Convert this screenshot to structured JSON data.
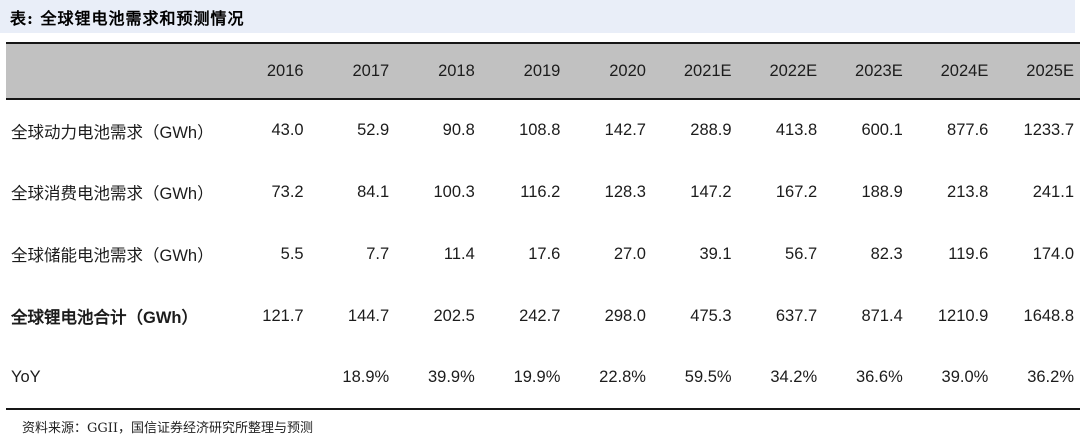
{
  "title": "表: 全球锂电池需求和预测情况",
  "source": "资料来源：GGII，国信证券经济研究所整理与预测",
  "colors": {
    "title_band_bg": "#e9eef8",
    "header_row_bg": "#c1c1c1",
    "rule_line": "#161616",
    "text": "#1c1c1c"
  },
  "table": {
    "corner_label": "",
    "columns": [
      "2016",
      "2017",
      "2018",
      "2019",
      "2020",
      "2021E",
      "2022E",
      "2023E",
      "2024E",
      "2025E"
    ],
    "rows": [
      {
        "label": "全球动力电池需求（GWh）",
        "bold": false,
        "values": [
          "43.0",
          "52.9",
          "90.8",
          "108.8",
          "142.7",
          "288.9",
          "413.8",
          "600.1",
          "877.6",
          "1233.7"
        ]
      },
      {
        "label": "全球消费电池需求（GWh）",
        "bold": false,
        "values": [
          "73.2",
          "84.1",
          "100.3",
          "116.2",
          "128.3",
          "147.2",
          "167.2",
          "188.9",
          "213.8",
          "241.1"
        ]
      },
      {
        "label": "全球储能电池需求（GWh）",
        "bold": false,
        "values": [
          "5.5",
          "7.7",
          "11.4",
          "17.6",
          "27.0",
          "39.1",
          "56.7",
          "82.3",
          "119.6",
          "174.0"
        ]
      },
      {
        "label": "全球锂电池合计（GWh）",
        "bold": true,
        "values": [
          "121.7",
          "144.7",
          "202.5",
          "242.7",
          "298.0",
          "475.3",
          "637.7",
          "871.4",
          "1210.9",
          "1648.8"
        ]
      },
      {
        "label": "YoY",
        "bold": false,
        "values": [
          "",
          "18.9%",
          "39.9%",
          "19.9%",
          "22.8%",
          "59.5%",
          "34.2%",
          "36.6%",
          "39.0%",
          "36.2%"
        ]
      }
    ]
  }
}
